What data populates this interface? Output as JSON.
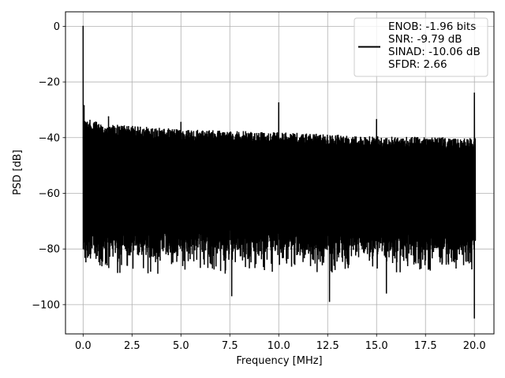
{
  "chart_data": {
    "type": "line",
    "xlabel": "Frequency [MHz]",
    "ylabel": "PSD [dB]",
    "xlim": [
      -0.9,
      21.0
    ],
    "ylim": [
      -110.5,
      5.2
    ],
    "x_ticks": [
      0.0,
      2.5,
      5.0,
      7.5,
      10.0,
      12.5,
      15.0,
      17.5,
      20.0
    ],
    "x_tick_labels": [
      "0.0",
      "2.5",
      "5.0",
      "7.5",
      "10.0",
      "12.5",
      "15.0",
      "17.5",
      "20.0"
    ],
    "y_ticks": [
      0,
      -20,
      -40,
      -60,
      -80,
      -100
    ],
    "y_tick_labels": [
      "0",
      "−20",
      "−40",
      "−60",
      "−80",
      "−100"
    ],
    "grid": true,
    "legend_position": "top-right",
    "series_color": "#000000",
    "legend_lines": [
      "ENOB: -1.96 bits",
      "SNR: -9.79 dB",
      "SINAD: -10.06 dB",
      "SFDR: 2.66"
    ],
    "noise_band": {
      "x_range": [
        0.0,
        20.05
      ],
      "upper_envelope_db": [
        [
          0.1,
          -33.0
        ],
        [
          1.0,
          -35.0
        ],
        [
          5.0,
          -37.0
        ],
        [
          10.0,
          -38.0
        ],
        [
          15.0,
          -39.5
        ],
        [
          20.0,
          -40.0
        ]
      ],
      "lower_envelope_db": [
        [
          0.1,
          -80.0
        ],
        [
          10.0,
          -80.0
        ],
        [
          20.0,
          -80.0
        ]
      ],
      "dips_db": [
        [
          7.6,
          -97.0
        ],
        [
          12.6,
          -99.0
        ],
        [
          15.5,
          -96.0
        ],
        [
          20.0,
          -105.0
        ]
      ]
    },
    "peaks": [
      {
        "x": 0.0,
        "y": 0.0
      },
      {
        "x": 0.05,
        "y": -28.5
      },
      {
        "x": 1.3,
        "y": -32.5
      },
      {
        "x": 5.0,
        "y": -34.5
      },
      {
        "x": 10.0,
        "y": -27.5
      },
      {
        "x": 15.0,
        "y": -33.5
      },
      {
        "x": 20.0,
        "y": -24.0
      }
    ]
  }
}
